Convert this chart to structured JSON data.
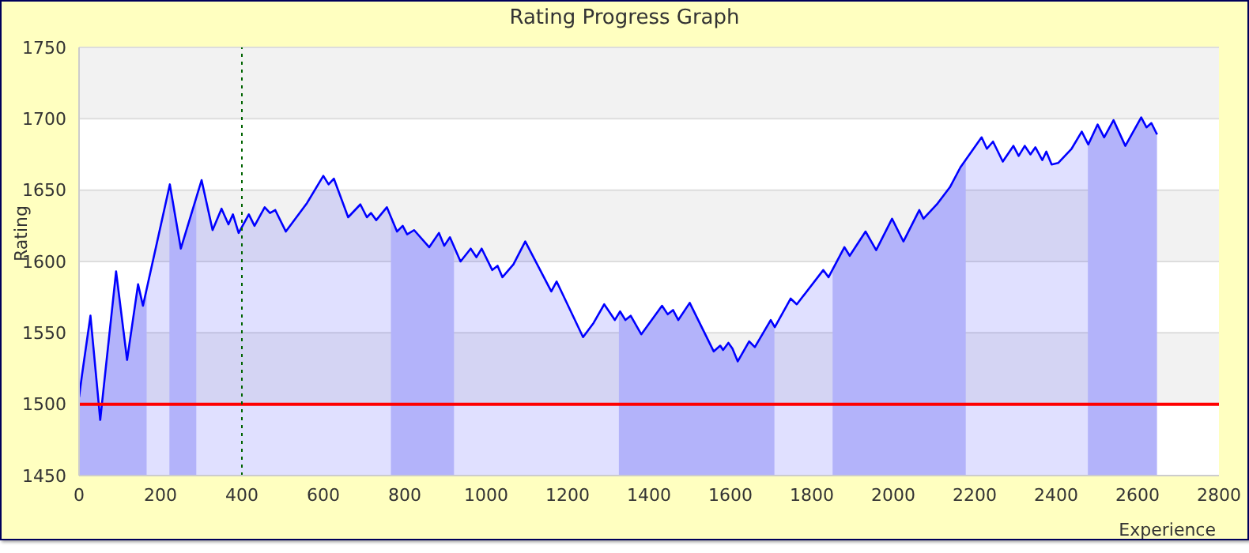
{
  "chart_data": {
    "type": "area",
    "title": "Rating Progress Graph",
    "xlabel": "Experience",
    "ylabel": "Rating",
    "xlim": [
      0,
      2800
    ],
    "xticks": [
      0,
      200,
      400,
      600,
      800,
      1000,
      1200,
      1400,
      1600,
      1800,
      2000,
      2200,
      2400,
      2600,
      2800
    ],
    "ylim": [
      1450,
      1750
    ],
    "yticks": [
      1450,
      1500,
      1550,
      1600,
      1650,
      1700,
      1750
    ],
    "grid": "y",
    "legend": false,
    "series": [
      {
        "color": "#0000ff",
        "x": [
          0,
          7,
          28,
          52,
          91,
          118,
          145,
          157,
          223,
          250,
          301,
          328,
          350,
          367,
          378,
          392,
          417,
          431,
          456,
          469,
          482,
          508,
          560,
          600,
          613,
          626,
          661,
          691,
          707,
          717,
          730,
          756,
          781,
          795,
          806,
          823,
          860,
          884,
          897,
          911,
          937,
          962,
          976,
          989,
          1015,
          1028,
          1040,
          1067,
          1096,
          1160,
          1173,
          1238,
          1264,
          1290,
          1316,
          1329,
          1342,
          1355,
          1381,
          1432,
          1446,
          1459,
          1472,
          1500,
          1559,
          1575,
          1582,
          1595,
          1605,
          1618,
          1646,
          1660,
          1699,
          1709,
          1748,
          1763,
          1828,
          1841,
          1880,
          1893,
          1932,
          1958,
          1997,
          2025,
          2064,
          2074,
          2107,
          2139,
          2165,
          2217,
          2230,
          2245,
          2269,
          2295,
          2308,
          2323,
          2337,
          2349,
          2366,
          2376,
          2389,
          2405,
          2438,
          2463,
          2479,
          2502,
          2518,
          2541,
          2570,
          2609,
          2622,
          2634,
          2648
        ],
        "values": [
          1505,
          1520,
          1562,
          1489,
          1593,
          1531,
          1584,
          1569,
          1654,
          1609,
          1657,
          1622,
          1637,
          1626,
          1633,
          1620,
          1633,
          1625,
          1638,
          1634,
          1636,
          1621,
          1641,
          1660,
          1654,
          1658,
          1631,
          1640,
          1631,
          1634,
          1629,
          1638,
          1621,
          1625,
          1619,
          1622,
          1610,
          1620,
          1611,
          1617,
          1600,
          1609,
          1603,
          1609,
          1594,
          1597,
          1589,
          1598,
          1614,
          1579,
          1586,
          1547,
          1557,
          1570,
          1559,
          1565,
          1559,
          1562,
          1549,
          1569,
          1563,
          1566,
          1559,
          1571,
          1537,
          1541,
          1538,
          1543,
          1539,
          1530,
          1544,
          1540,
          1559,
          1554,
          1574,
          1570,
          1594,
          1589,
          1610,
          1604,
          1621,
          1608,
          1630,
          1614,
          1636,
          1630,
          1640,
          1652,
          1666,
          1687,
          1679,
          1684,
          1670,
          1681,
          1674,
          1681,
          1675,
          1680,
          1671,
          1677,
          1668,
          1669,
          1679,
          1691,
          1682,
          1696,
          1687,
          1699,
          1681,
          1701,
          1694,
          1697,
          1689
        ]
      }
    ],
    "bands": [
      {
        "axis": "x",
        "from": 0,
        "to": 166,
        "color": "#ccccfa"
      },
      {
        "axis": "x",
        "from": 222,
        "to": 288,
        "color": "#ccccfa"
      },
      {
        "axis": "x",
        "from": 766,
        "to": 921,
        "color": "#ccccfa"
      },
      {
        "axis": "x",
        "from": 1326,
        "to": 1708,
        "color": "#ccccfa"
      },
      {
        "axis": "x",
        "from": 1851,
        "to": 2178,
        "color": "#ccccfa"
      },
      {
        "axis": "x",
        "from": 2478,
        "to": 2648,
        "color": "#ccccfa"
      }
    ],
    "ref_lines": [
      {
        "axis": "y",
        "value": 1500,
        "color": "#ff0000",
        "line_style": "solid"
      },
      {
        "axis": "x",
        "value": 400,
        "color": "#006400",
        "line_style": "dotted"
      }
    ]
  }
}
